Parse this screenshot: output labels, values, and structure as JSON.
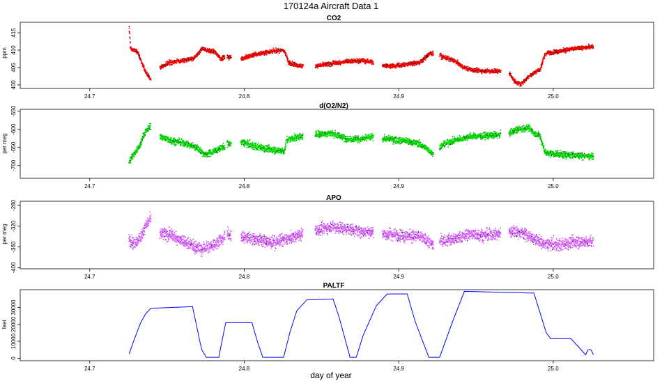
{
  "figure": {
    "title": "170124a   Aircraft Data 1",
    "xlabel": "day of year"
  },
  "chart_data": [
    {
      "type": "scatter",
      "title": "CO2",
      "ylabel": "ppm",
      "color": "#ff0000",
      "edge_color": "#000000",
      "xlim": [
        24.655,
        25.065
      ],
      "ylim": [
        399,
        418
      ],
      "xticks": [
        24.7,
        24.8,
        24.9,
        25.0
      ],
      "xtick_labels": [
        "24.7",
        "24.8",
        "24.9",
        "25.0"
      ],
      "yticks": [
        400,
        405,
        410,
        415
      ],
      "ytick_labels": [
        "400",
        "405",
        "410",
        "415"
      ],
      "noise": 0.6,
      "segments": [
        {
          "x": [
            24.7255,
            24.7265,
            24.728,
            24.731,
            24.734,
            24.736,
            24.738,
            24.7395
          ],
          "y": [
            416.5,
            410.5,
            410,
            409.5,
            406,
            404,
            402.5,
            401.5
          ]
        },
        {
          "x": [
            24.7455,
            24.752,
            24.76,
            24.767,
            24.7705,
            24.7725,
            24.776,
            24.781,
            24.785,
            24.7875
          ],
          "y": [
            405,
            406.5,
            407,
            407.5,
            409,
            410.5,
            410,
            409.5,
            407.5,
            408
          ]
        },
        {
          "x": [
            24.789,
            24.7915
          ],
          "y": [
            408,
            408
          ]
        },
        {
          "x": [
            24.798,
            24.805,
            24.815,
            24.825,
            24.827,
            24.8285,
            24.835,
            24.838
          ],
          "y": [
            407.5,
            408.5,
            409.5,
            410,
            409,
            406.5,
            405.5,
            405.5
          ]
        },
        {
          "x": [
            24.846,
            24.856,
            24.866,
            24.876,
            24.8835
          ],
          "y": [
            405.5,
            406,
            406.8,
            407,
            406.5
          ]
        },
        {
          "x": [
            24.8895,
            24.8975,
            24.906,
            24.914,
            24.92,
            24.9225
          ],
          "y": [
            405.5,
            405.5,
            406,
            406.5,
            409,
            409
          ]
        },
        {
          "x": [
            24.9265,
            24.932,
            24.936,
            24.942,
            24.948,
            24.958,
            24.966
          ],
          "y": [
            408.5,
            407.5,
            407,
            405,
            404.2,
            404,
            404
          ]
        },
        {
          "x": [
            24.9715,
            24.975,
            24.979,
            24.983,
            24.9875,
            24.9915,
            24.995,
            25.005,
            25.015,
            25.026
          ],
          "y": [
            403.5,
            401,
            400.2,
            402,
            403.5,
            404.5,
            409,
            409.8,
            410.5,
            411
          ]
        }
      ]
    },
    {
      "type": "scatter",
      "title": "d(O2/N2)",
      "ylabel": "per meg",
      "color": "#00dd00",
      "edge_color": "#004400",
      "xlim": [
        24.655,
        25.065
      ],
      "ylim": [
        -735,
        -545
      ],
      "xticks": [
        24.7,
        24.8,
        24.9,
        25.0
      ],
      "xtick_labels": [
        "24.7",
        "24.8",
        "24.9",
        "25.0"
      ],
      "yticks": [
        -700,
        -650,
        -600,
        -550
      ],
      "ytick_labels": [
        "-700",
        "-650",
        "-600",
        "-550"
      ],
      "noise": 9,
      "segments": [
        {
          "x": [
            24.7255,
            24.7285,
            24.731,
            24.733,
            24.7355,
            24.7395
          ],
          "y": [
            -690,
            -670,
            -655,
            -640,
            -610,
            -590
          ]
        },
        {
          "x": [
            24.7455,
            24.752,
            24.762,
            24.769,
            24.775,
            24.781,
            24.786,
            24.7875
          ],
          "y": [
            -620,
            -630,
            -640,
            -650,
            -670,
            -660,
            -650,
            -650
          ]
        },
        {
          "x": [
            24.789,
            24.7915
          ],
          "y": [
            -640,
            -640
          ]
        },
        {
          "x": [
            24.798,
            24.806,
            24.816,
            24.826,
            24.8275,
            24.835,
            24.838
          ],
          "y": [
            -635,
            -645,
            -655,
            -660,
            -630,
            -620,
            -620
          ]
        },
        {
          "x": [
            24.846,
            24.856,
            24.866,
            24.876,
            24.8835
          ],
          "y": [
            -615,
            -610,
            -625,
            -628,
            -620
          ]
        },
        {
          "x": [
            24.8895,
            24.9,
            24.912,
            24.919,
            24.9225
          ],
          "y": [
            -625,
            -630,
            -638,
            -655,
            -670
          ]
        },
        {
          "x": [
            24.9265,
            24.93,
            24.938,
            24.946,
            24.955,
            24.966
          ],
          "y": [
            -650,
            -640,
            -628,
            -620,
            -618,
            -615
          ]
        },
        {
          "x": [
            24.9715,
            24.978,
            24.984,
            24.9875,
            24.9915,
            24.995,
            25.005,
            25.015,
            25.026
          ],
          "y": [
            -610,
            -600,
            -595,
            -610,
            -620,
            -665,
            -670,
            -672,
            -675
          ]
        }
      ]
    },
    {
      "type": "scatter",
      "title": "APO",
      "ylabel": "per meg",
      "color": "#dd66ff",
      "edge_color": "#551177",
      "xlim": [
        24.655,
        25.065
      ],
      "ylim": [
        -402,
        -272
      ],
      "xticks": [
        24.7,
        24.8,
        24.9,
        25.0
      ],
      "xtick_labels": [
        "24.7",
        "24.8",
        "24.9",
        "25.0"
      ],
      "yticks": [
        -400,
        -360,
        -320,
        -280
      ],
      "ytick_labels": [
        "-400",
        "-360",
        "-320",
        "-280"
      ],
      "noise": 11,
      "segments": [
        {
          "x": [
            24.7255,
            24.729,
            24.733,
            24.736,
            24.7395
          ],
          "y": [
            -345,
            -355,
            -340,
            -320,
            -305
          ]
        },
        {
          "x": [
            24.7455,
            24.753,
            24.762,
            24.772,
            24.781,
            24.7875
          ],
          "y": [
            -335,
            -338,
            -350,
            -365,
            -355,
            -340
          ]
        },
        {
          "x": [
            24.789,
            24.7915
          ],
          "y": [
            -335,
            -335
          ]
        },
        {
          "x": [
            24.798,
            24.807,
            24.818,
            24.828,
            24.838
          ],
          "y": [
            -340,
            -345,
            -352,
            -345,
            -335
          ]
        },
        {
          "x": [
            24.846,
            24.856,
            24.866,
            24.876,
            24.8835
          ],
          "y": [
            -330,
            -320,
            -325,
            -330,
            -330
          ]
        },
        {
          "x": [
            24.8895,
            24.902,
            24.914,
            24.9225
          ],
          "y": [
            -335,
            -338,
            -340,
            -355
          ]
        },
        {
          "x": [
            24.9265,
            24.936,
            24.946,
            24.956,
            24.966
          ],
          "y": [
            -350,
            -345,
            -335,
            -338,
            -335
          ]
        },
        {
          "x": [
            24.9715,
            24.98,
            24.9875,
            24.995,
            25.005,
            25.015,
            25.026
          ],
          "y": [
            -330,
            -332,
            -345,
            -355,
            -355,
            -350,
            -350
          ]
        }
      ]
    },
    {
      "type": "line",
      "title": "PALTF",
      "ylabel": "feet",
      "color": "#0000ff",
      "xlim": [
        24.655,
        25.065
      ],
      "ylim": [
        -1500,
        40500
      ],
      "xticks": [
        24.7,
        24.8,
        24.9,
        25.0
      ],
      "xtick_labels": [
        "24.7",
        "24.8",
        "24.9",
        "25.0"
      ],
      "yticks": [
        0,
        10000,
        20000,
        30000
      ],
      "ytick_labels": [
        "0",
        "10000",
        "20000",
        "30000"
      ],
      "x": [
        24.7255,
        24.728,
        24.73,
        24.733,
        24.736,
        24.7395,
        24.7665,
        24.769,
        24.771,
        24.7725,
        24.7755,
        24.78,
        24.7835,
        24.788,
        24.805,
        24.8085,
        24.812,
        24.8255,
        24.8295,
        24.834,
        24.8405,
        24.8575,
        24.8615,
        24.8685,
        24.8725,
        24.877,
        24.8855,
        24.8925,
        24.9055,
        24.9105,
        24.9195,
        24.9265,
        24.935,
        24.9425,
        24.9875,
        24.9955,
        24.9985,
        25.0115,
        25.0175,
        25.021,
        25.0225,
        25.0245,
        25.026
      ],
      "y": [
        2500,
        9000,
        14000,
        21000,
        26000,
        29500,
        30500,
        20000,
        11000,
        5000,
        500,
        500,
        500,
        21000,
        21000,
        10000,
        500,
        500,
        15000,
        28000,
        34500,
        35000,
        24000,
        500,
        500,
        13500,
        31000,
        38000,
        38000,
        22000,
        500,
        500,
        22000,
        39500,
        38500,
        15000,
        11500,
        11500,
        5500,
        2000,
        5000,
        5000,
        2000
      ]
    }
  ]
}
